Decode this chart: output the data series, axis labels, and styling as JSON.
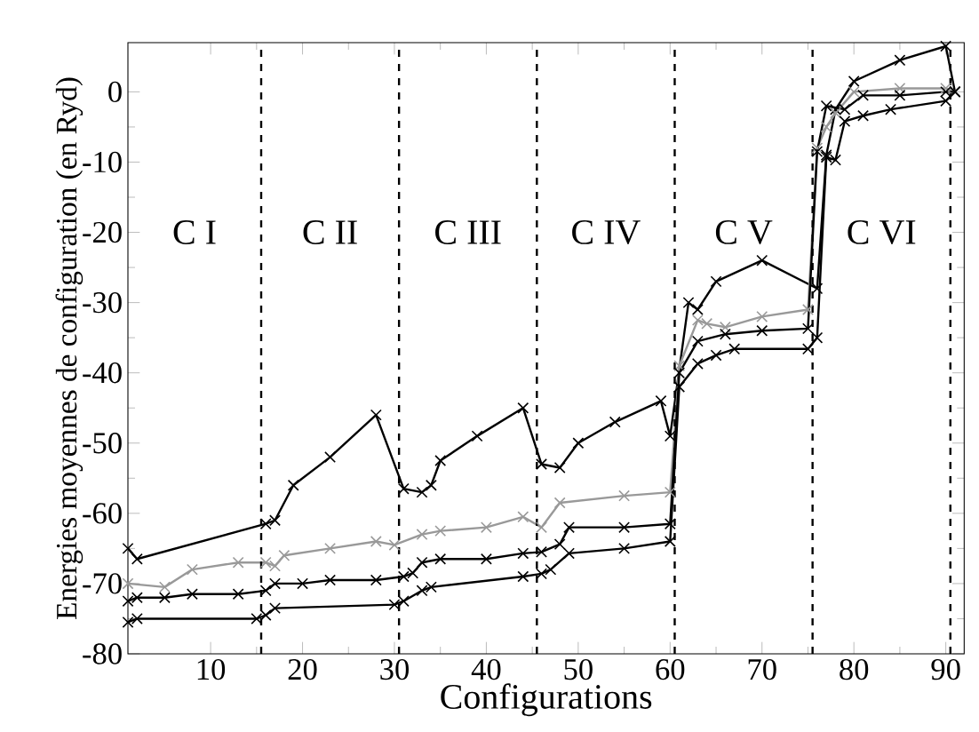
{
  "chart_data": {
    "type": "line",
    "xlabel": "Configurations",
    "ylabel": "Energies moyennes de configuration (en Ryd)",
    "xlim": [
      1,
      92
    ],
    "ylim": [
      -80,
      7
    ],
    "xticks": [
      10,
      20,
      30,
      40,
      50,
      60,
      70,
      80,
      90
    ],
    "yticks": [
      -80,
      -70,
      -60,
      -50,
      -40,
      -30,
      -20,
      -10,
      0
    ],
    "grid": false,
    "marker": "cross",
    "line_style": "solid",
    "ref_lines": [
      {
        "axis": "x",
        "value": 15.5,
        "color": "#000000",
        "line_style": "dashed"
      },
      {
        "axis": "x",
        "value": 30.5,
        "color": "#000000",
        "line_style": "dashed"
      },
      {
        "axis": "x",
        "value": 45.5,
        "color": "#000000",
        "line_style": "dashed"
      },
      {
        "axis": "x",
        "value": 60.5,
        "color": "#000000",
        "line_style": "dashed"
      },
      {
        "axis": "x",
        "value": 75.5,
        "color": "#000000",
        "line_style": "dashed"
      },
      {
        "axis": "x",
        "value": 90.5,
        "color": "#000000",
        "line_style": "dashed"
      }
    ],
    "annotations": [
      "C I",
      "C II",
      "C III",
      "C IV",
      "C V",
      "C VI"
    ],
    "series": [
      {
        "color": "#000000",
        "x": [
          1,
          2,
          16,
          17,
          19,
          23,
          28,
          31,
          33,
          34,
          35,
          39,
          44,
          46,
          48,
          50,
          54,
          59,
          60,
          62,
          63,
          65,
          70,
          76,
          77,
          78,
          80,
          85,
          90,
          91
        ],
        "values": [
          -65,
          -66.5,
          -61.5,
          -61,
          -56,
          -52,
          -46,
          -56.5,
          -57,
          -56,
          -52.5,
          -49,
          -45,
          -53,
          -53.5,
          -50,
          -47,
          -44,
          -49,
          -30,
          -31,
          -27,
          -24,
          -28,
          -9,
          -2.5,
          1.5,
          4.5,
          6.5,
          0
        ]
      },
      {
        "color": "#999999",
        "x": [
          1,
          5,
          8,
          13,
          16,
          17,
          18,
          23,
          28,
          30,
          33,
          35,
          40,
          44,
          46,
          48,
          55,
          60,
          61,
          63,
          64,
          66,
          70,
          75,
          76,
          77,
          78,
          80,
          85,
          90,
          91
        ],
        "values": [
          -70,
          -70.5,
          -68,
          -67,
          -67,
          -67.5,
          -66,
          -65,
          -64,
          -64.5,
          -63,
          -62.5,
          -62,
          -60.5,
          -62,
          -58.5,
          -57.5,
          -57,
          -39,
          -32.5,
          -33,
          -33.5,
          -32,
          -31,
          -8,
          -5,
          -3,
          0,
          0.5,
          0.5,
          0
        ]
      },
      {
        "color": "#000000",
        "x": [
          1,
          2,
          5,
          8,
          13,
          16,
          17,
          20,
          23,
          28,
          31,
          32,
          33,
          35,
          40,
          44,
          46,
          48,
          49,
          55,
          60,
          61,
          63,
          66,
          70,
          75,
          76,
          77,
          79,
          81,
          85,
          90,
          91
        ],
        "values": [
          -72.5,
          -72,
          -72,
          -71.5,
          -71.5,
          -71,
          -70,
          -70,
          -69.5,
          -69.5,
          -69,
          -68.5,
          -67,
          -66.5,
          -66.5,
          -65.7,
          -65.5,
          -64.4,
          -62,
          -62,
          -61.5,
          -40,
          -35.5,
          -34.5,
          -34,
          -33.7,
          -8.5,
          -2,
          -2.5,
          -0.5,
          -0.5,
          0,
          0
        ]
      },
      {
        "color": "#000000",
        "x": [
          1,
          2,
          15,
          16,
          17,
          30,
          31,
          33,
          34,
          44,
          46,
          47,
          49,
          55,
          60,
          61,
          63,
          65,
          67,
          75,
          76,
          77,
          78,
          79,
          81,
          84,
          90,
          91
        ],
        "values": [
          -75.5,
          -75,
          -75,
          -74.5,
          -73.5,
          -73,
          -72.5,
          -71,
          -70.5,
          -69,
          -68.6,
          -68,
          -65.7,
          -65,
          -64,
          -42,
          -38.7,
          -37.5,
          -36.6,
          -36.6,
          -35,
          -9.3,
          -9.7,
          -4.2,
          -3.4,
          -2.5,
          -1.3,
          0
        ]
      }
    ]
  }
}
